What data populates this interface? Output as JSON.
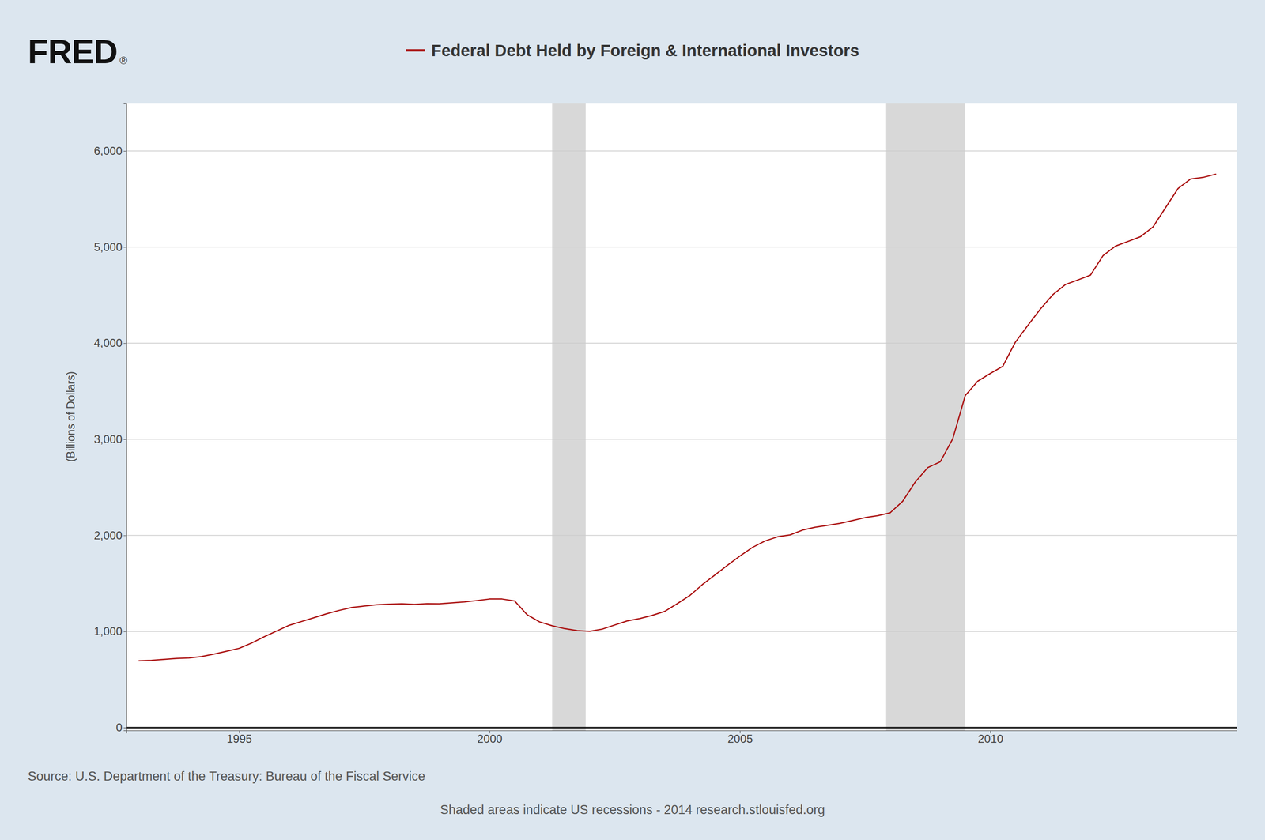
{
  "chart_data": {
    "type": "line",
    "title": "Federal Debt Held by Foreign & International Investors",
    "ylabel": "(Billions of Dollars)",
    "annotations": [
      "FRED",
      "®",
      "Source: U.S. Department of the Treasury: Bureau of the Fiscal Service",
      "Shaded areas indicate US recessions  -  2014 research.stlouisfed.org"
    ],
    "x": [
      1993.0,
      1993.25,
      1993.5,
      1993.75,
      1994.0,
      1994.25,
      1994.5,
      1994.75,
      1995.0,
      1995.25,
      1995.5,
      1995.75,
      1996.0,
      1996.25,
      1996.5,
      1996.75,
      1997.0,
      1997.25,
      1997.5,
      1997.75,
      1998.0,
      1998.25,
      1998.5,
      1998.75,
      1999.0,
      1999.25,
      1999.5,
      1999.75,
      2000.0,
      2000.25,
      2000.5,
      2000.75,
      2001.0,
      2001.25,
      2001.5,
      2001.75,
      2002.0,
      2002.25,
      2002.5,
      2002.75,
      2003.0,
      2003.25,
      2003.5,
      2003.75,
      2004.0,
      2004.25,
      2004.5,
      2004.75,
      2005.0,
      2005.25,
      2005.5,
      2005.75,
      2006.0,
      2006.25,
      2006.5,
      2006.75,
      2007.0,
      2007.25,
      2007.5,
      2007.75,
      2008.0,
      2008.25,
      2008.5,
      2008.75,
      2009.0,
      2009.25,
      2009.5,
      2009.75,
      2010.0,
      2010.25,
      2010.5,
      2010.75,
      2011.0,
      2011.25,
      2011.5,
      2011.75,
      2012.0,
      2012.25,
      2012.5,
      2012.75,
      2013.0,
      2013.25,
      2013.5,
      2013.75,
      2014.0,
      2014.25,
      2014.5
    ],
    "values": [
      695,
      700,
      710,
      720,
      725,
      740,
      765,
      795,
      825,
      880,
      945,
      1005,
      1065,
      1105,
      1145,
      1185,
      1220,
      1250,
      1265,
      1278,
      1285,
      1288,
      1282,
      1290,
      1288,
      1298,
      1308,
      1322,
      1338,
      1338,
      1318,
      1175,
      1100,
      1060,
      1030,
      1010,
      1002,
      1025,
      1068,
      1110,
      1135,
      1168,
      1210,
      1290,
      1375,
      1488,
      1588,
      1688,
      1785,
      1875,
      1942,
      1985,
      2005,
      2055,
      2085,
      2105,
      2125,
      2155,
      2185,
      2205,
      2235,
      2355,
      2555,
      2705,
      2765,
      3005,
      3455,
      3605,
      3685,
      3760,
      4010,
      4185,
      4355,
      4505,
      4610,
      4658,
      4708,
      4910,
      5010,
      5058,
      5108,
      5210,
      5410,
      5610,
      5708,
      5725,
      5758
    ],
    "color": "#aa1111",
    "recessions": {
      "color": "#d8d8d8",
      "ranges": [
        [
          2001.25,
          2001.92
        ],
        [
          2007.92,
          2009.5
        ]
      ]
    },
    "xlim": [
      1992.75,
      2014.92
    ],
    "ylim": [
      -30,
      6500
    ],
    "xticks": [
      1995,
      2000,
      2005,
      2010
    ],
    "yticks": [
      0,
      {
        "value": 1000,
        "label": "1,000"
      },
      {
        "value": 2000,
        "label": "2,000"
      },
      {
        "value": 3000,
        "label": "3,000"
      },
      {
        "value": 4000,
        "label": "4,000"
      },
      {
        "value": 5000,
        "label": "5,000"
      },
      {
        "value": 6000,
        "label": "6,000"
      }
    ],
    "grid": true
  }
}
